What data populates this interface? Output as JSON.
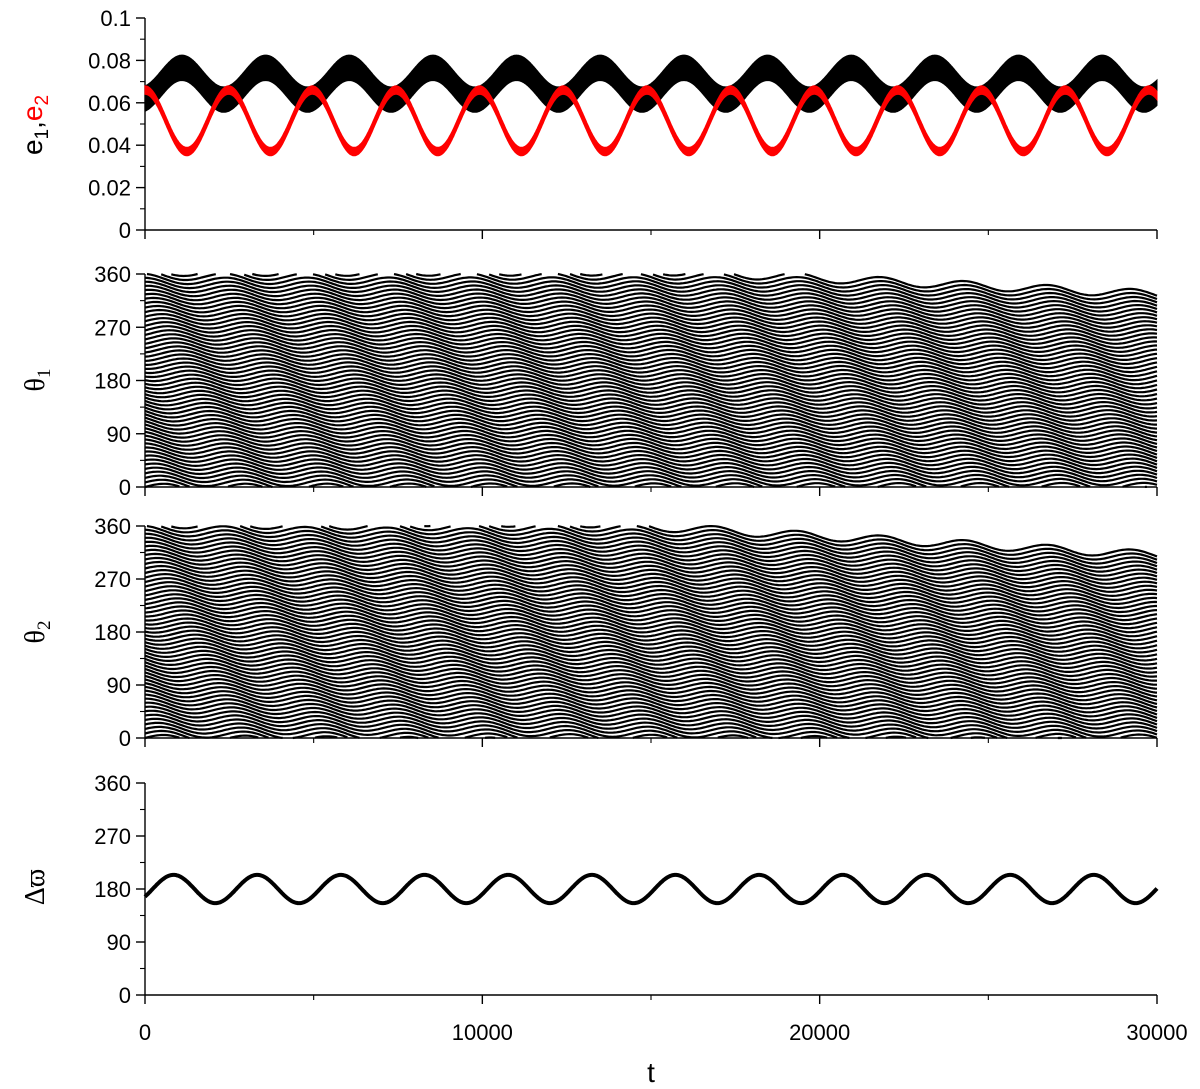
{
  "chart_data": [
    {
      "type": "line",
      "panel": "eccentricities",
      "ylabel_parts": [
        "e",
        "1",
        ",",
        "e",
        "2"
      ],
      "xlim": [
        0,
        30000
      ],
      "ylim": [
        0,
        0.1
      ],
      "yticks": [
        0,
        0.02,
        0.04,
        0.06,
        0.08,
        0.1
      ],
      "ytick_labels": [
        "0",
        "0.02",
        "0.04",
        "0.06",
        "0.08",
        "0.1"
      ],
      "series": [
        {
          "name": "e1",
          "color": "#000000",
          "band": true,
          "mean": 0.069,
          "amplitude": 0.0075,
          "band_halfwidth": 0.006,
          "period": 2480,
          "phase_start": 0.062
        },
        {
          "name": "e2",
          "color": "#ff0000",
          "band": true,
          "mean": 0.0515,
          "amplitude": 0.0145,
          "band_halfwidth": 0.002,
          "period": 2480,
          "phase_start": 0.066
        }
      ],
      "grid": false
    },
    {
      "type": "scatter",
      "panel": "theta1",
      "ylabel_parts": [
        "θ",
        "1"
      ],
      "xlim": [
        0,
        30000
      ],
      "ylim": [
        0,
        360
      ],
      "yticks": [
        0,
        90,
        180,
        270,
        360
      ],
      "ytick_labels": [
        "0",
        "90",
        "180",
        "270",
        "360"
      ],
      "series": [
        {
          "color": "#000000",
          "style": "dense circulation",
          "mean_slope_deg_per_unit_t": -0.0027,
          "wiggle_period": 2480
        }
      ],
      "grid": false
    },
    {
      "type": "scatter",
      "panel": "theta2",
      "ylabel_parts": [
        "θ",
        "2"
      ],
      "xlim": [
        0,
        30000
      ],
      "ylim": [
        0,
        360
      ],
      "yticks": [
        0,
        90,
        180,
        270,
        360
      ],
      "ytick_labels": [
        "0",
        "90",
        "180",
        "270",
        "360"
      ],
      "series": [
        {
          "color": "#000000",
          "style": "dense circulation",
          "mean_slope_deg_per_unit_t": -0.0032,
          "wiggle_period": 2480
        }
      ],
      "grid": false
    },
    {
      "type": "line",
      "panel": "delta_varpi",
      "ylabel_parts": [
        "Δϖ"
      ],
      "xlim": [
        0,
        30000
      ],
      "ylim": [
        0,
        360
      ],
      "yticks": [
        0,
        90,
        180,
        270,
        360
      ],
      "ytick_labels": [
        "0",
        "90",
        "180",
        "270",
        "360"
      ],
      "series": [
        {
          "color": "#000000",
          "mean": 180,
          "amplitude": 24,
          "period": 2480,
          "start": 167
        }
      ],
      "grid": false
    }
  ],
  "x_axis": {
    "label": "t",
    "ticks": [
      0,
      10000,
      20000,
      30000
    ],
    "tick_labels": [
      "0",
      "10000",
      "20000",
      "30000"
    ],
    "minor_ticks": [
      5000,
      15000,
      25000
    ]
  }
}
